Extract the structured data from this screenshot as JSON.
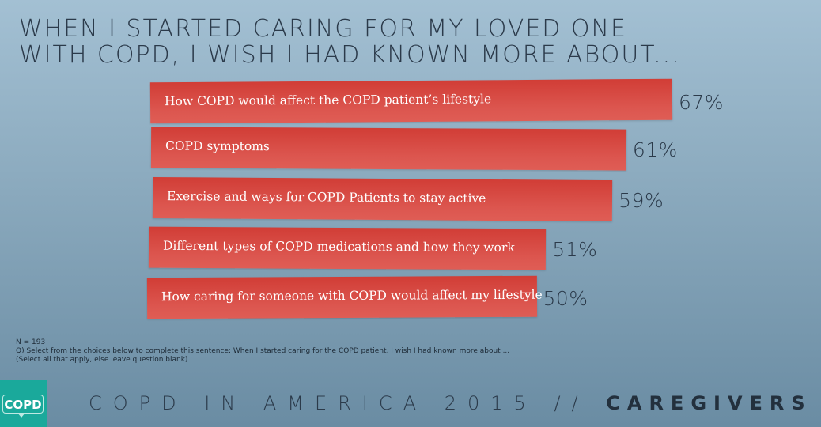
{
  "title": [
    "WHEN I STARTED CARING FOR MY LOVED ONE",
    "WITH COPD, I WISH I HAD KNOWN MORE ABOUT..."
  ],
  "chart_data": {
    "type": "bar",
    "orientation": "horizontal",
    "title": "When I started caring for my loved one with COPD, I wish I had known more about...",
    "categories": [
      "How COPD would affect the COPD patient’s lifestyle",
      "COPD symptoms",
      "Exercise and ways for COPD Patients to stay active",
      "Different types of COPD medications and how they work",
      "How caring for someone with COPD would affect my lifestyle"
    ],
    "values": [
      67,
      61,
      59,
      51,
      50
    ],
    "value_labels": [
      "67%",
      "61%",
      "59%",
      "51%",
      "50%"
    ],
    "unit": "%",
    "xlim": [
      0,
      100
    ],
    "bar_color": "#d6463f"
  },
  "notes": {
    "n": "N = 193",
    "question": "Q) Select from the choices below to complete this sentence: When I started caring for the COPD patient, I wish I had known more about ...",
    "instruction": "(Select all that apply, else leave question blank)"
  },
  "logo": {
    "text": "COPD",
    "color": "#1aa99b"
  },
  "footer": {
    "main": "COPD IN AMERICA 2015 //",
    "emphasis": "CAREGIVERS"
  }
}
